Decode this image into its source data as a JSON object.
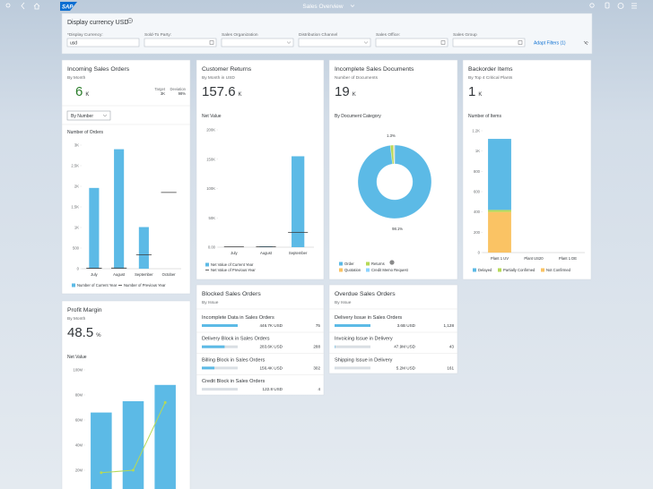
{
  "shell": {
    "logo": "SAP",
    "title": "Sales Overview"
  },
  "filter_bar": {
    "title": "Display currency USD",
    "fields": [
      {
        "label": "*Display Currency:",
        "value": "usd"
      },
      {
        "label": "Sold-To Party:"
      },
      {
        "label": "Sales Organization"
      },
      {
        "label": "Distribution Channel"
      },
      {
        "label": "Sales Office:"
      },
      {
        "label": "Sales Group"
      }
    ],
    "adapt_filters": "Adapt Filters (1)"
  },
  "cards": [
    {
      "title": "Incoming Sales Orders",
      "subtitle": "By Month",
      "kpi": {
        "value": "6",
        "unit": "K",
        "color": "#2b7d2b",
        "target_label": "Target",
        "target": "3K",
        "deviation_label": "Deviation",
        "deviation": "98%"
      },
      "dropdown": "By Number",
      "chart_data": {
        "type": "combination",
        "title": "Number of Orders",
        "categories": [
          "July",
          "August",
          "September",
          "October"
        ],
        "series": [
          {
            "name": "Number of Current Year",
            "type": "bar",
            "color": "#5cbae6",
            "values": [
              1960,
              2900,
              1010,
              null
            ]
          },
          {
            "name": "Number of Previous Year",
            "type": "marker",
            "color": "#3a3a3a",
            "values": [
              10,
              15,
              340,
              1850
            ]
          }
        ],
        "ylim": [
          0,
          3000
        ],
        "yticks": [
          0,
          500,
          {
            "value": 1000,
            "label": "1K"
          },
          {
            "value": 1500,
            "label": "1.5K"
          },
          {
            "value": 2000,
            "label": "2K"
          },
          {
            "value": 2500,
            "label": "2.5K"
          },
          {
            "value": 3000,
            "label": "3K"
          }
        ]
      }
    },
    {
      "title": "Customer Returns",
      "subtitle": "By Month in USD",
      "kpi": {
        "value": "157.6",
        "unit": "K"
      },
      "chart_data": {
        "type": "combination",
        "title": "Net Value",
        "categories": [
          "July",
          "August",
          "September"
        ],
        "series": [
          {
            "name": "Net Value of Current Year",
            "type": "bar",
            "color": "#5cbae6",
            "values": [
              800,
              1200,
              155000
            ]
          },
          {
            "name": "Net Value of Previous Year",
            "type": "marker",
            "color": "#3a3a3a",
            "values": [
              600,
              900,
              25000
            ]
          }
        ],
        "ylim": [
          0,
          200000
        ],
        "yticks": [
          {
            "value": 0,
            "label": "0.00"
          },
          {
            "value": 50000,
            "label": "50K"
          },
          {
            "value": 100000,
            "label": "100K"
          },
          {
            "value": 150000,
            "label": "150K"
          },
          {
            "value": 200000,
            "label": "200K"
          }
        ]
      }
    },
    {
      "title": "Incomplete Sales Documents",
      "subtitle": "Number of Documents",
      "kpi": {
        "value": "19",
        "unit": "K"
      },
      "chart_data": {
        "type": "donut",
        "title": "By Document Category",
        "categories": [
          "Order",
          "Returns",
          "Quotation",
          "Credit Memo Request"
        ],
        "values": [
          98.1,
          1.3,
          0.4,
          0.2
        ],
        "value_labels": [
          "98.1%",
          "1.3%",
          null,
          null
        ],
        "colors": [
          "#5cbae6",
          "#b6d957",
          "#fac364",
          "#8cd3ff"
        ]
      }
    },
    {
      "title": "Backorder Items",
      "subtitle": "By Top 4 Critical Plants",
      "kpi": {
        "value": "1",
        "unit": "K"
      },
      "chart_data": {
        "type": "combination",
        "stacked": true,
        "title": "Number of Items",
        "categories": [
          "Plant 1 UV",
          "Plant US20",
          "Plant 1 DE"
        ],
        "series": [
          {
            "name": "Delayed",
            "type": "bar",
            "color": "#5cbae6",
            "values": [
              700,
              0,
              0
            ]
          },
          {
            "name": "Partially Confirmed",
            "type": "bar",
            "color": "#b6d957",
            "values": [
              20,
              0,
              0
            ]
          },
          {
            "name": "Not Confirmed",
            "type": "bar",
            "color": "#fac364",
            "values": [
              400,
              0,
              0
            ]
          }
        ],
        "ylim": [
          0,
          1200
        ],
        "yticks": [
          0,
          200,
          400,
          600,
          800,
          {
            "value": 1000,
            "label": "1K"
          },
          {
            "value": 1200,
            "label": "1.2K"
          }
        ]
      }
    },
    {
      "title": "Profit Margin",
      "subtitle": "By Month",
      "kpi": {
        "value": "48.5",
        "unit": "%"
      },
      "chart_data": {
        "type": "combination",
        "title": "Net Value",
        "categories": [
          null,
          null,
          null
        ],
        "series": [
          {
            "type": "bar",
            "color": "#5cbae6",
            "values": [
              66000000,
              75000000,
              88000000
            ]
          },
          {
            "type": "line",
            "color": "#b6d957",
            "values": [
              18000000,
              20000000,
              74000000
            ]
          }
        ],
        "ylim": [
          0,
          100000000
        ],
        "yticks": [
          {
            "value": 20000000,
            "label": "20M"
          },
          {
            "value": 40000000,
            "label": "40M"
          },
          {
            "value": 60000000,
            "label": "60M"
          },
          {
            "value": 80000000,
            "label": "80M"
          },
          {
            "value": 100000000,
            "label": "100M"
          }
        ]
      }
    },
    {
      "title": "Blocked Sales Orders",
      "subtitle": "By Issue",
      "rows": [
        {
          "label": "Incomplete Data in Sales Orders",
          "amount": 446700,
          "amount_label": "446.7K USD",
          "count": "75"
        },
        {
          "label": "Delivery Block in Sales Orders",
          "amount": 283600,
          "amount_label": "283.6K USD",
          "count": "288"
        },
        {
          "label": "Billing Block in Sales Orders",
          "amount": 156400,
          "amount_label": "156.4K USD",
          "count": "302"
        },
        {
          "label": "Credit Block in Sales Orders",
          "amount": 122.8,
          "amount_label": "122.8 USD",
          "count": "4"
        }
      ]
    },
    {
      "title": "Overdue Sales Orders",
      "subtitle": "By Issue",
      "rows": [
        {
          "label": "Delivery Issue in Sales Orders",
          "amount": 3600000000,
          "amount_label": "3.6B USD",
          "count": "1,128"
        },
        {
          "label": "Invoicing Issue in Delivery",
          "amount": 47900000,
          "amount_label": "47.9M USD",
          "count": "43"
        },
        {
          "label": "Shipping Issue in Delivery",
          "amount": 5200000,
          "amount_label": "5.2M USD",
          "count": "161"
        }
      ]
    }
  ]
}
